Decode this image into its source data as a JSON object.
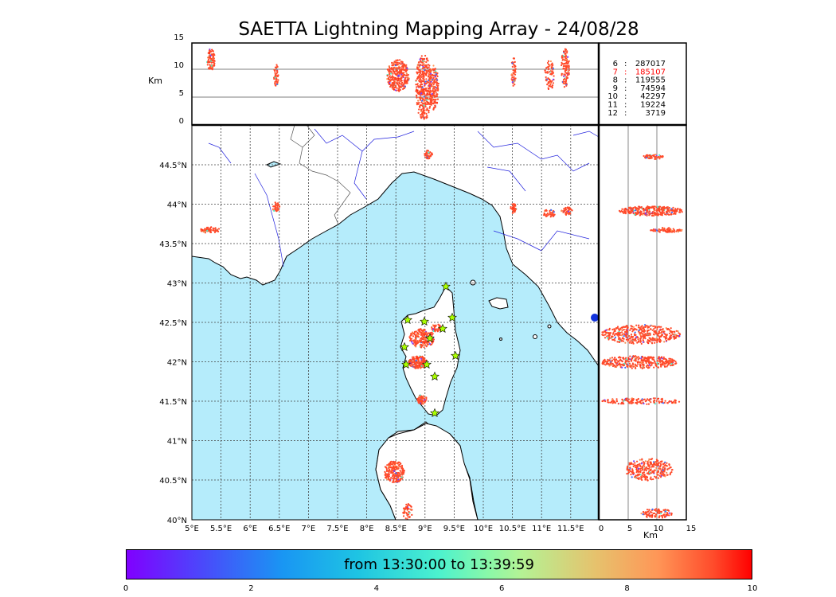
{
  "title": "SAETTA Lightning Mapping Array - 24/08/28",
  "km_label": "Km",
  "alt_ticks": [
    "15",
    "10",
    "5",
    "0"
  ],
  "lat_ticks": [
    "44.5°N",
    "44°N",
    "43.5°N",
    "43°N",
    "42.5°N",
    "42°N",
    "41.5°N",
    "41°N",
    "40.5°N",
    "40°N"
  ],
  "lon_ticks": [
    "5°E",
    "5.5°E",
    "6°E",
    "6.5°E",
    "7°E",
    "7.5°E",
    "8°E",
    "8.5°E",
    "9°E",
    "9.5°E",
    "10°E",
    "10.5°E",
    "11°E",
    "11.5°E"
  ],
  "km_ticks": [
    "0",
    "5",
    "10",
    "15"
  ],
  "stations": [
    {
      "id": "6",
      "count": "287017",
      "highlight": false
    },
    {
      "id": "7",
      "count": "185107",
      "highlight": true
    },
    {
      "id": "8",
      "count": "119555",
      "highlight": false
    },
    {
      "id": "9",
      "count": "74594",
      "highlight": false
    },
    {
      "id": "10",
      "count": "42297",
      "highlight": false
    },
    {
      "id": "11",
      "count": "19224",
      "highlight": false
    },
    {
      "id": "12",
      "count": "3719",
      "highlight": false
    }
  ],
  "colorbar": {
    "label": "from 13:30:00 to 13:39:59",
    "ticks": [
      "0",
      "2",
      "4",
      "6",
      "8",
      "10"
    ]
  },
  "colors": {
    "sea": "#b5ecfb",
    "coast": "#000000",
    "rivers": "#2222dd",
    "borders": "#555555",
    "highlight": "#ff0000",
    "station_star": "#aaff00"
  }
}
